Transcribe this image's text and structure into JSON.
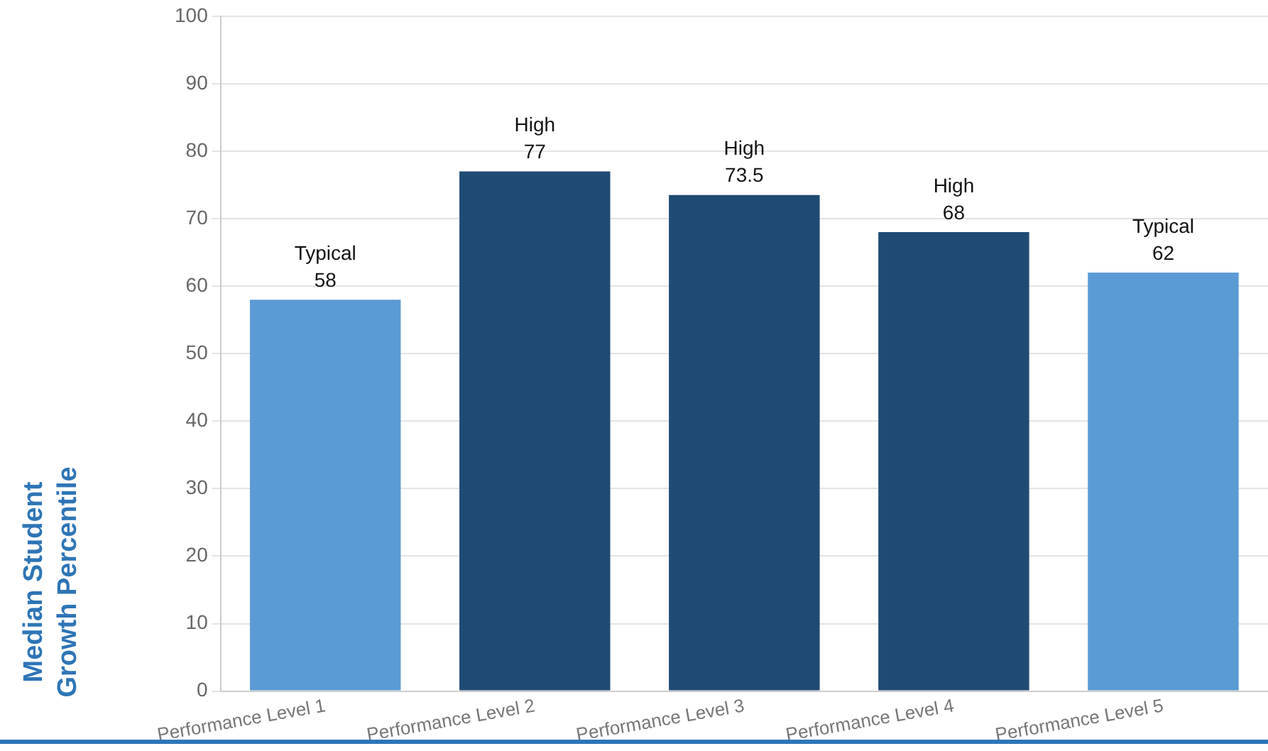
{
  "chart_data": {
    "type": "bar",
    "ylabel": "Median Student Growth Percentile",
    "categories": [
      "Performance Level 1",
      "Performance Level 2",
      "Performance Level 3",
      "Performance Level 4",
      "Performance Level 5"
    ],
    "values": [
      58,
      77,
      73.5,
      68,
      62
    ],
    "colors": [
      "#5b9bd5",
      "#1f4a74",
      "#1f4a74",
      "#1f4a74",
      "#5b9bd5"
    ],
    "value_labels": [
      "Typical\n58",
      "High\n77",
      "High\n73.5",
      "High\n68",
      "Typical\n62"
    ],
    "ylim": [
      0,
      100
    ],
    "yticks": [
      0,
      10,
      20,
      30,
      40,
      50,
      60,
      70,
      80,
      90,
      100
    ],
    "grid": "y"
  }
}
